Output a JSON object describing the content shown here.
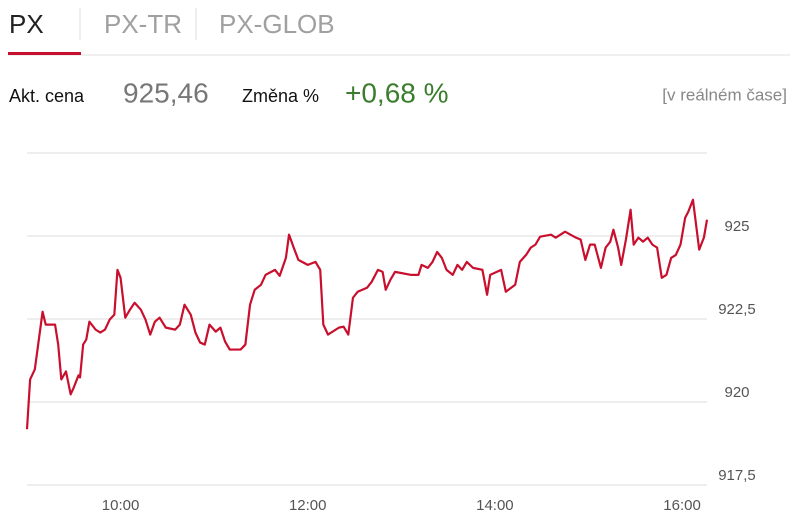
{
  "tabs": [
    {
      "label": "PX",
      "active": true
    },
    {
      "label": "PX-TR"
    },
    {
      "label": "PX-GLOB"
    }
  ],
  "quote": {
    "price_label": "Akt. cena",
    "price": "925,46",
    "change_label": "Změna %",
    "change": "+0,68 %",
    "realtime": "[v reálném čase]"
  },
  "chart_data": {
    "type": "line",
    "color": "#c8102e",
    "grid": true,
    "x": [
      540,
      542,
      545,
      550,
      552,
      558,
      560,
      562,
      565,
      568,
      570,
      573,
      574,
      576,
      578,
      580,
      584,
      587,
      590,
      593,
      596,
      598,
      600,
      603,
      606,
      609,
      613,
      616,
      619,
      622,
      625,
      629,
      635,
      638,
      641,
      645,
      648,
      651,
      654,
      657,
      661,
      664,
      667,
      670,
      677,
      680,
      683,
      686,
      690,
      693,
      699,
      702,
      706,
      708,
      711,
      714,
      720,
      725,
      728,
      730,
      733,
      740,
      743,
      746,
      749,
      752,
      758,
      761,
      765,
      768,
      770,
      773,
      776,
      786,
      791,
      793,
      797,
      800,
      803,
      806,
      809,
      813,
      816,
      819,
      822,
      826,
      832,
      835,
      837,
      844,
      847,
      853,
      856,
      860,
      863,
      866,
      869,
      876,
      879,
      885,
      892,
      895,
      898,
      901,
      904,
      908,
      911,
      914,
      916,
      919,
      921,
      924,
      927,
      929,
      932,
      935,
      938,
      941,
      944,
      947,
      950,
      953,
      956,
      959,
      962,
      964,
      967,
      969,
      971,
      974,
      976
    ],
    "values": [
      919.18,
      920.68,
      920.98,
      922.72,
      922.33,
      922.33,
      921.73,
      920.68,
      920.92,
      920.23,
      920.44,
      920.8,
      920.74,
      921.73,
      921.88,
      922.42,
      922.18,
      922.09,
      922.18,
      922.48,
      922.63,
      923.98,
      923.74,
      922.54,
      922.78,
      922.99,
      922.78,
      922.48,
      922.03,
      922.42,
      922.54,
      922.24,
      922.18,
      922.33,
      922.93,
      922.63,
      922.09,
      921.79,
      921.73,
      922.33,
      922.12,
      922.24,
      921.82,
      921.58,
      921.58,
      921.73,
      922.93,
      923.38,
      923.53,
      923.83,
      923.98,
      923.8,
      924.34,
      925.04,
      924.65,
      924.28,
      924.13,
      924.22,
      923.98,
      922.33,
      922.03,
      922.24,
      922.27,
      922.03,
      923.14,
      923.32,
      923.44,
      923.62,
      923.98,
      923.92,
      923.38,
      923.68,
      923.92,
      923.83,
      923.83,
      924.13,
      924.04,
      924.22,
      924.52,
      924.34,
      923.98,
      923.83,
      924.13,
      923.98,
      924.22,
      924.04,
      923.98,
      923.23,
      923.83,
      923.98,
      923.32,
      923.53,
      924.22,
      924.43,
      924.65,
      924.74,
      924.98,
      925.04,
      924.95,
      925.13,
      924.95,
      924.89,
      924.28,
      924.74,
      924.74,
      924.04,
      924.65,
      924.83,
      925.19,
      924.65,
      924.13,
      924.89,
      925.79,
      924.74,
      924.95,
      924.83,
      924.95,
      924.74,
      924.65,
      923.74,
      923.83,
      924.34,
      924.43,
      924.74,
      925.55,
      925.73,
      926.09,
      925.34,
      924.59,
      924.95,
      925.49
    ],
    "xlim": [
      540,
      976
    ],
    "xticks": [
      {
        "value": 600,
        "label": "10:00"
      },
      {
        "value": 720,
        "label": "12:00"
      },
      {
        "value": 840,
        "label": "14:00"
      },
      {
        "value": 960,
        "label": "16:00"
      }
    ],
    "ylim": [
      917.5,
      927.5
    ],
    "yticks": [
      {
        "value": 917.5,
        "label": "917,5"
      },
      920,
      {
        "value": 922.5,
        "label": "922,5"
      },
      925
    ]
  }
}
